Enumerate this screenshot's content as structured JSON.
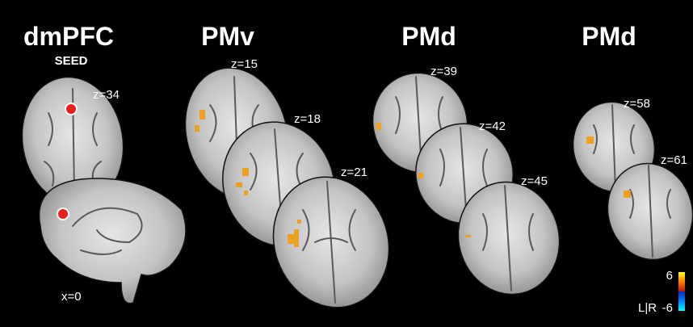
{
  "panels": [
    {
      "title": "dmPFC",
      "subtitle": "SEED",
      "slices": [
        {
          "label": "z=34"
        },
        {
          "label": "x=0"
        }
      ]
    },
    {
      "title": "PMv",
      "slices": [
        {
          "label": "z=15"
        },
        {
          "label": "z=18"
        },
        {
          "label": "z=21"
        }
      ]
    },
    {
      "title": "PMd",
      "slices": [
        {
          "label": "z=39"
        },
        {
          "label": "z=42"
        },
        {
          "label": "z=45"
        }
      ]
    },
    {
      "title": "PMd",
      "slices": [
        {
          "label": "z=58"
        },
        {
          "label": "z=61"
        }
      ]
    }
  ],
  "colorbar": {
    "max": 6,
    "min": -6,
    "side_label": "L|R"
  }
}
